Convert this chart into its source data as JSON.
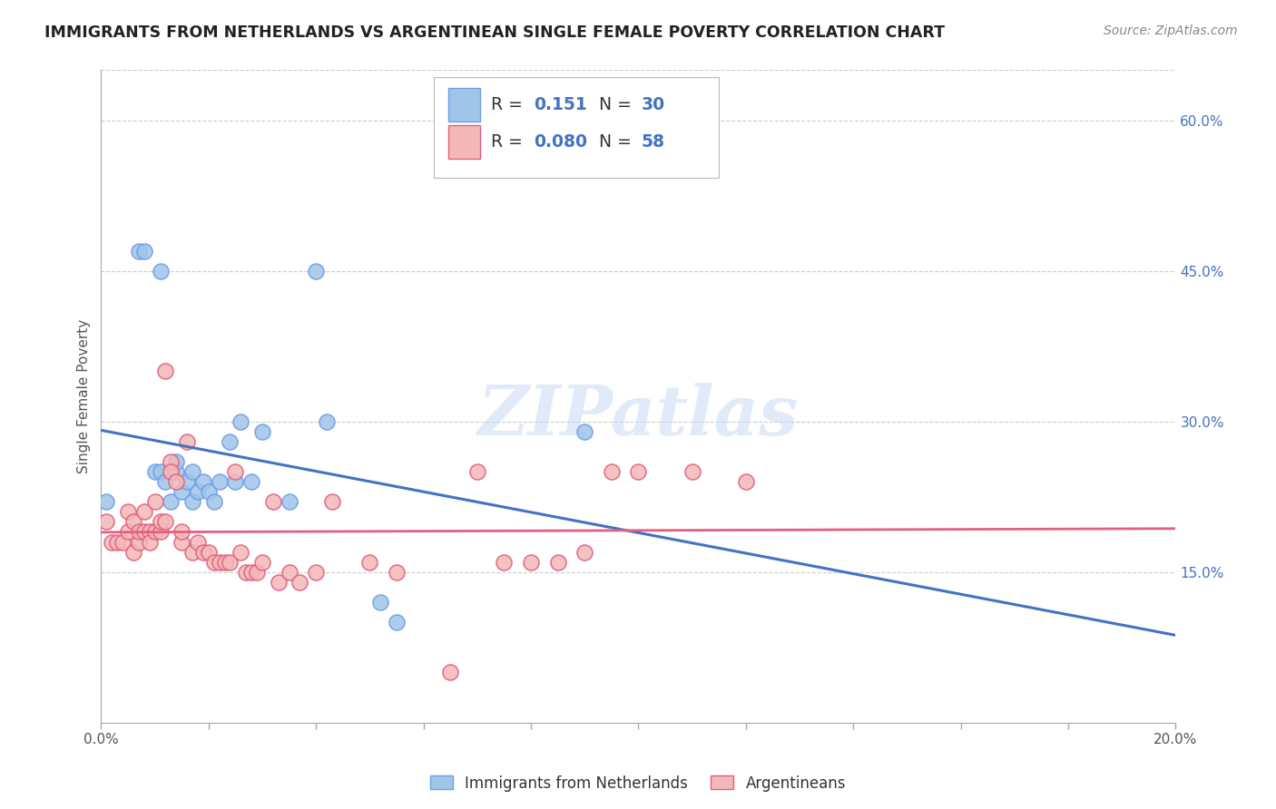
{
  "title": "IMMIGRANTS FROM NETHERLANDS VS ARGENTINEAN SINGLE FEMALE POVERTY CORRELATION CHART",
  "source": "Source: ZipAtlas.com",
  "ylabel": "Single Female Poverty",
  "xlim": [
    0.0,
    0.2
  ],
  "ylim": [
    0.0,
    0.65
  ],
  "x_ticks": [
    0.0,
    0.02,
    0.04,
    0.06,
    0.08,
    0.1,
    0.12,
    0.14,
    0.16,
    0.18,
    0.2
  ],
  "x_tick_labels": [
    "0.0%",
    "",
    "",
    "",
    "",
    "",
    "",
    "",
    "",
    "",
    "20.0%"
  ],
  "y_ticks_right": [
    0.15,
    0.3,
    0.45,
    0.6
  ],
  "y_tick_labels_right": [
    "15.0%",
    "30.0%",
    "45.0%",
    "60.0%"
  ],
  "color_blue": "#9fc5e8",
  "color_pink": "#f4b8b8",
  "edge_color_blue": "#6d9eeb",
  "edge_color_pink": "#e06080",
  "line_color_blue": "#4472c4",
  "line_color_pink": "#e06080",
  "watermark": "ZIPatlas",
  "netherlands_x": [
    0.001,
    0.007,
    0.008,
    0.01,
    0.011,
    0.011,
    0.012,
    0.013,
    0.014,
    0.014,
    0.015,
    0.016,
    0.017,
    0.017,
    0.018,
    0.019,
    0.02,
    0.021,
    0.022,
    0.024,
    0.025,
    0.026,
    0.028,
    0.03,
    0.035,
    0.04,
    0.042,
    0.052,
    0.055,
    0.09
  ],
  "netherlands_y": [
    0.22,
    0.47,
    0.47,
    0.25,
    0.25,
    0.45,
    0.24,
    0.22,
    0.25,
    0.26,
    0.23,
    0.24,
    0.22,
    0.25,
    0.23,
    0.24,
    0.23,
    0.22,
    0.24,
    0.28,
    0.24,
    0.3,
    0.24,
    0.29,
    0.22,
    0.45,
    0.3,
    0.12,
    0.1,
    0.29
  ],
  "argentina_x": [
    0.001,
    0.002,
    0.003,
    0.004,
    0.005,
    0.005,
    0.006,
    0.006,
    0.007,
    0.007,
    0.008,
    0.008,
    0.009,
    0.009,
    0.01,
    0.01,
    0.011,
    0.011,
    0.012,
    0.012,
    0.013,
    0.013,
    0.014,
    0.015,
    0.015,
    0.016,
    0.017,
    0.018,
    0.019,
    0.02,
    0.021,
    0.022,
    0.023,
    0.024,
    0.025,
    0.026,
    0.027,
    0.028,
    0.029,
    0.03,
    0.032,
    0.033,
    0.035,
    0.037,
    0.04,
    0.043,
    0.05,
    0.055,
    0.065,
    0.07,
    0.075,
    0.08,
    0.085,
    0.09,
    0.095,
    0.1,
    0.11,
    0.12
  ],
  "argentina_y": [
    0.2,
    0.18,
    0.18,
    0.18,
    0.19,
    0.21,
    0.2,
    0.17,
    0.18,
    0.19,
    0.19,
    0.21,
    0.19,
    0.18,
    0.19,
    0.22,
    0.19,
    0.2,
    0.2,
    0.35,
    0.26,
    0.25,
    0.24,
    0.18,
    0.19,
    0.28,
    0.17,
    0.18,
    0.17,
    0.17,
    0.16,
    0.16,
    0.16,
    0.16,
    0.25,
    0.17,
    0.15,
    0.15,
    0.15,
    0.16,
    0.22,
    0.14,
    0.15,
    0.14,
    0.15,
    0.22,
    0.16,
    0.15,
    0.05,
    0.25,
    0.16,
    0.16,
    0.16,
    0.17,
    0.25,
    0.25,
    0.25,
    0.24
  ]
}
